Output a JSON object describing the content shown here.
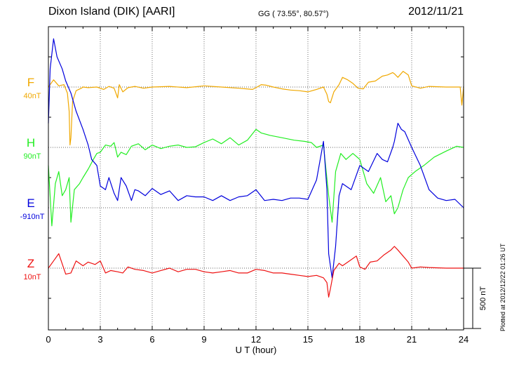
{
  "header": {
    "station": "Dixon Island (DIK)  [AARI]",
    "coords": "GG ( 73.55°,  80.57°)",
    "date": "2012/11/21"
  },
  "footer": {
    "plotted": "Plotted at 2012/12/22 01:26 UT"
  },
  "chart_data": {
    "type": "line",
    "title": "Dixon Island (DIK)  [AARI]",
    "xlabel": "U T (hour)",
    "ylabel": "",
    "xlim": [
      0,
      24
    ],
    "xticks": [
      "0",
      "3",
      "6",
      "9",
      "12",
      "15",
      "18",
      "21",
      "24"
    ],
    "scale_bar_label": "500 nT",
    "scale_bar_nT": 500,
    "series": [
      {
        "name": "F",
        "baseline_label": "40nT",
        "color": "#f0a800",
        "unit": "nT",
        "x": [
          0,
          0.3,
          0.6,
          0.9,
          1.1,
          1.2,
          1.25,
          1.3,
          1.4,
          1.6,
          1.9,
          2.0,
          2.3,
          2.8,
          3.2,
          3.5,
          3.8,
          4.0,
          4.1,
          4.3,
          4.6,
          5.0,
          5.5,
          6.0,
          7.0,
          8.0,
          9.0,
          10.0,
          11.0,
          11.8,
          12.0,
          12.3,
          12.6,
          13.0,
          13.5,
          14.0,
          14.5,
          15.0,
          15.5,
          15.9,
          16.1,
          16.2,
          16.3,
          16.5,
          16.8,
          17.0,
          17.3,
          17.6,
          17.9,
          18.2,
          18.5,
          18.9,
          19.3,
          19.6,
          19.9,
          20.0,
          20.2,
          20.5,
          20.8,
          21.0,
          21.5,
          22.0,
          23.0,
          23.8,
          23.9,
          24.0
        ],
        "y": [
          0,
          60,
          10,
          20,
          -50,
          -200,
          -480,
          -420,
          -120,
          -30,
          -10,
          0,
          -5,
          0,
          -20,
          5,
          -10,
          -90,
          20,
          -40,
          -5,
          5,
          -10,
          0,
          5,
          -5,
          10,
          0,
          -10,
          -20,
          -5,
          20,
          15,
          0,
          -15,
          -25,
          -30,
          -40,
          -20,
          0,
          -60,
          -120,
          -130,
          -40,
          20,
          80,
          60,
          30,
          -10,
          -15,
          40,
          50,
          90,
          100,
          120,
          110,
          80,
          130,
          100,
          10,
          -10,
          5,
          0,
          0,
          -150,
          0
        ]
      },
      {
        "name": "H",
        "baseline_label": "90nT",
        "color": "#22ee22",
        "unit": "nT",
        "x": [
          0,
          0.2,
          0.4,
          0.6,
          0.8,
          1.0,
          1.2,
          1.3,
          1.5,
          1.8,
          2.0,
          2.3,
          2.6,
          2.8,
          3.0,
          3.3,
          3.6,
          3.8,
          4.0,
          4.2,
          4.5,
          4.8,
          5.2,
          5.6,
          6.0,
          6.5,
          7.0,
          7.5,
          8.0,
          8.5,
          9.0,
          9.5,
          10.0,
          10.5,
          11.0,
          11.5,
          12.0,
          12.3,
          12.8,
          13.5,
          14.2,
          14.8,
          15.2,
          15.5,
          15.9,
          16.2,
          16.4,
          16.6,
          16.9,
          17.2,
          17.6,
          18.0,
          18.4,
          18.8,
          19.2,
          19.5,
          19.8,
          20.0,
          20.2,
          20.5,
          20.8,
          21.2,
          21.7,
          22.3,
          23.0,
          23.6,
          24.0
        ],
        "y": [
          -150,
          -650,
          -300,
          -200,
          -400,
          -350,
          -250,
          -620,
          -350,
          -300,
          -250,
          -180,
          -100,
          -50,
          -40,
          20,
          10,
          40,
          -80,
          -40,
          -60,
          10,
          30,
          -20,
          20,
          -10,
          10,
          20,
          0,
          5,
          40,
          70,
          30,
          80,
          20,
          60,
          150,
          120,
          100,
          80,
          60,
          50,
          40,
          0,
          20,
          -400,
          -620,
          -200,
          -50,
          -100,
          -50,
          -100,
          -300,
          -380,
          -250,
          -450,
          -400,
          -550,
          -500,
          -350,
          -250,
          -200,
          -150,
          -80,
          -30,
          10,
          0
        ]
      },
      {
        "name": "E",
        "baseline_label": "-910nT",
        "color": "#0000dd",
        "unit": "nT",
        "x": [
          0,
          0.1,
          0.3,
          0.5,
          0.8,
          1.0,
          1.3,
          1.6,
          2.0,
          2.3,
          2.5,
          2.8,
          3.0,
          3.3,
          3.5,
          3.8,
          4.0,
          4.2,
          4.5,
          4.8,
          5.0,
          5.2,
          5.6,
          6.0,
          6.5,
          7.0,
          7.5,
          8.0,
          8.5,
          9.0,
          9.5,
          10.0,
          10.5,
          11.0,
          11.5,
          12.0,
          12.5,
          13.0,
          13.5,
          14.0,
          14.5,
          15.0,
          15.5,
          15.9,
          16.1,
          16.2,
          16.4,
          16.6,
          16.8,
          17.0,
          17.5,
          18.0,
          18.5,
          19.0,
          19.3,
          19.6,
          19.9,
          20.0,
          20.2,
          20.4,
          20.6,
          21.0,
          21.5,
          22.0,
          22.5,
          23.0,
          23.5,
          24.0
        ],
        "y": [
          700,
          1150,
          1400,
          1250,
          1150,
          1050,
          950,
          800,
          650,
          520,
          400,
          350,
          180,
          150,
          250,
          120,
          60,
          250,
          180,
          60,
          150,
          140,
          100,
          160,
          110,
          140,
          60,
          100,
          90,
          90,
          60,
          100,
          60,
          90,
          100,
          150,
          60,
          70,
          60,
          80,
          80,
          70,
          230,
          550,
          150,
          -380,
          -580,
          -320,
          100,
          200,
          150,
          350,
          300,
          450,
          400,
          380,
          500,
          550,
          700,
          650,
          630,
          500,
          350,
          150,
          80,
          60,
          70,
          0
        ]
      },
      {
        "name": "Z",
        "baseline_label": "10nT",
        "color": "#ee1111",
        "unit": "nT",
        "x": [
          0,
          0.3,
          0.6,
          1.0,
          1.3,
          1.6,
          2.0,
          2.3,
          2.7,
          3.0,
          3.3,
          3.6,
          4.0,
          4.3,
          4.6,
          5.0,
          5.5,
          6.0,
          6.5,
          7.0,
          7.5,
          8.0,
          8.5,
          9.0,
          9.5,
          10.0,
          10.5,
          11.0,
          11.5,
          12.0,
          12.5,
          13.0,
          13.5,
          14.0,
          14.5,
          15.0,
          15.5,
          15.9,
          16.1,
          16.2,
          16.3,
          16.5,
          16.8,
          17.0,
          17.4,
          17.8,
          18.0,
          18.3,
          18.6,
          19.0,
          19.4,
          19.8,
          20.0,
          20.2,
          20.5,
          20.8,
          21.0,
          21.5,
          22.0,
          23.0,
          24.0
        ],
        "y": [
          0,
          60,
          120,
          -50,
          -40,
          60,
          20,
          50,
          30,
          60,
          -40,
          -20,
          -30,
          -40,
          10,
          -10,
          -20,
          -40,
          -20,
          0,
          -30,
          -10,
          -10,
          -30,
          -40,
          -30,
          -20,
          -40,
          -40,
          -10,
          -20,
          -40,
          -40,
          -50,
          -60,
          -70,
          -60,
          -80,
          -120,
          -240,
          -170,
          -20,
          40,
          20,
          60,
          100,
          10,
          -10,
          50,
          60,
          110,
          150,
          180,
          150,
          100,
          50,
          0,
          10,
          5,
          0,
          0
        ]
      }
    ]
  }
}
